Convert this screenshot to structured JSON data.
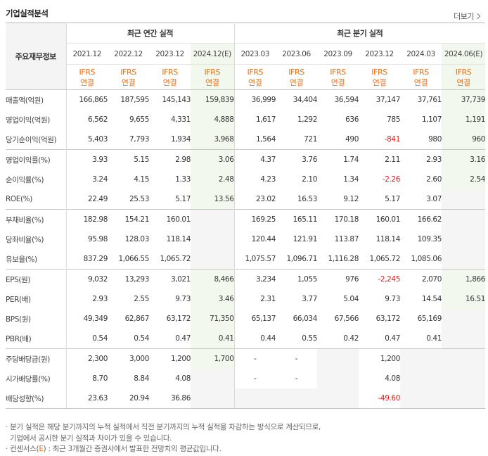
{
  "section_title": "기업실적분석",
  "more_label": "더보기",
  "header": {
    "row_label": "주요재무정보",
    "annual_group": "최근 연간 실적",
    "quarter_group": "최근 분기 실적",
    "annual_periods": [
      "2021.12",
      "2022.12",
      "2023.12",
      "2024.12(E)"
    ],
    "quarter_periods": [
      "2023.03",
      "2023.06",
      "2023.09",
      "2023.12",
      "2024.03",
      "2024.06(E)"
    ],
    "std_line1": "IFRS",
    "std_line2": "연결"
  },
  "rows": [
    {
      "label": "매출액(억원)",
      "annual": [
        "166,865",
        "187,595",
        "145,143",
        "159,839"
      ],
      "quarter": [
        "36,999",
        "34,404",
        "36,594",
        "37,147",
        "37,761",
        "37,739"
      ]
    },
    {
      "label": "영업이익(억원)",
      "annual": [
        "6,562",
        "9,655",
        "4,331",
        "4,888"
      ],
      "quarter": [
        "1,617",
        "1,292",
        "636",
        "785",
        "1,107",
        "1,191"
      ]
    },
    {
      "label": "당기순이익(억원)",
      "annual": [
        "5,403",
        "7,793",
        "1,934",
        "3,968"
      ],
      "quarter": [
        "1,564",
        "721",
        "490",
        "-841",
        "980",
        "960"
      ]
    },
    {
      "label": "영업이익률(%)",
      "annual": [
        "3.93",
        "5.15",
        "2.98",
        "3.06"
      ],
      "quarter": [
        "4.37",
        "3.76",
        "1.74",
        "2.11",
        "2.93",
        "3.16"
      ]
    },
    {
      "label": "순이익률(%)",
      "annual": [
        "3.24",
        "4.15",
        "1.33",
        "2.48"
      ],
      "quarter": [
        "4.23",
        "2.10",
        "1.34",
        "-2.26",
        "2.60",
        "2.54"
      ]
    },
    {
      "label": "ROE(%)",
      "annual": [
        "22.49",
        "25.53",
        "5.17",
        "13.56"
      ],
      "quarter": [
        "23.02",
        "16.53",
        "9.12",
        "5.17",
        "3.07",
        ""
      ]
    },
    {
      "label": "부채비율(%)",
      "annual": [
        "182.98",
        "154.21",
        "160.01",
        ""
      ],
      "quarter": [
        "169.25",
        "165.11",
        "170.18",
        "160.01",
        "166.62",
        ""
      ]
    },
    {
      "label": "당좌비율(%)",
      "annual": [
        "95.98",
        "128.03",
        "118.14",
        ""
      ],
      "quarter": [
        "120.44",
        "121.91",
        "113.87",
        "118.14",
        "109.35",
        ""
      ]
    },
    {
      "label": "유보율(%)",
      "annual": [
        "837.29",
        "1,066.55",
        "1,065.72",
        ""
      ],
      "quarter": [
        "1,075.57",
        "1,096.71",
        "1,116.28",
        "1,065.72",
        "1,085.06",
        ""
      ]
    },
    {
      "label": "EPS(원)",
      "annual": [
        "9,032",
        "13,293",
        "3,021",
        "8,466"
      ],
      "quarter": [
        "3,234",
        "1,055",
        "976",
        "-2,245",
        "2,070",
        "1,866"
      ]
    },
    {
      "label": "PER(배)",
      "annual": [
        "2.93",
        "2.55",
        "9.73",
        "3.46"
      ],
      "quarter": [
        "2.31",
        "3.77",
        "5.04",
        "9.73",
        "14.54",
        "16.51"
      ]
    },
    {
      "label": "BPS(원)",
      "annual": [
        "49,349",
        "62,867",
        "63,172",
        "71,350"
      ],
      "quarter": [
        "65,137",
        "66,034",
        "67,566",
        "63,172",
        "65,169",
        ""
      ]
    },
    {
      "label": "PBR(배)",
      "annual": [
        "0.54",
        "0.54",
        "0.47",
        "0.41"
      ],
      "quarter": [
        "0.44",
        "0.55",
        "0.42",
        "0.47",
        "0.41",
        ""
      ]
    },
    {
      "label": "주당배당금(원)",
      "annual": [
        "2,300",
        "3,000",
        "1,200",
        "1,700"
      ],
      "quarter": [
        "-",
        "-",
        "",
        "1,200",
        "",
        ""
      ]
    },
    {
      "label": "시가배당률(%)",
      "annual": [
        "8.70",
        "8.84",
        "4.08",
        ""
      ],
      "quarter": [
        "-",
        "-",
        "",
        "4.08",
        "",
        ""
      ]
    },
    {
      "label": "배당성향(%)",
      "annual": [
        "23.63",
        "20.94",
        "36.86",
        ""
      ],
      "quarter": [
        "",
        "",
        "",
        "-49.60",
        "",
        ""
      ]
    }
  ],
  "notes": {
    "line1": "· 분기 실적은 해당 분기까지의 누적 실적에서 직전 분기까지의 누적 실적을 차감하는 방식으로 계산되므로,",
    "line2": "  기업에서 공시한 분기 실적과 차이가 있을 수 있습니다.",
    "line3_prefix": "· 컨센서스(",
    "line3_e": "E",
    "line3_suffix": ") : 최근 3개월간 증권사에서 발표한 전망치의 평균값입니다."
  },
  "colors": {
    "ifrs": "#e8701a",
    "negative": "#e02020",
    "estimate_bg": "#f2f8ed",
    "empty_bg": "#f5f5f5"
  }
}
